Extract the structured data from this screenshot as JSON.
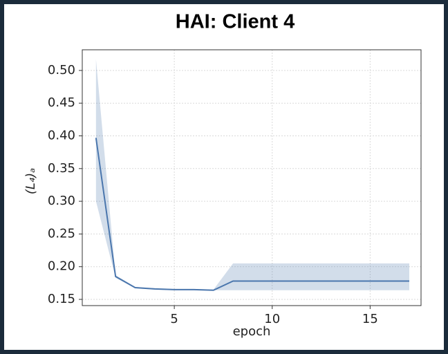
{
  "chart_data": {
    "type": "line",
    "title": "HAI: Client 4",
    "xlabel": "epoch",
    "ylabel": "(L₄)ₐ",
    "x": [
      1,
      2,
      3,
      4,
      5,
      6,
      7,
      8,
      9,
      10,
      11,
      12,
      13,
      14,
      15,
      16,
      17
    ],
    "series": [
      {
        "color": "#4a76ad",
        "values": [
          0.397,
          0.185,
          0.168,
          0.166,
          0.165,
          0.165,
          0.164,
          0.178,
          0.178,
          0.178,
          0.178,
          0.178,
          0.178,
          0.178,
          0.178,
          0.178,
          0.178
        ],
        "lower": [
          0.3,
          0.183,
          0.167,
          0.165,
          0.164,
          0.164,
          0.164,
          0.164,
          0.164,
          0.164,
          0.164,
          0.164,
          0.164,
          0.164,
          0.164,
          0.164,
          0.164
        ],
        "upper": [
          0.517,
          0.187,
          0.169,
          0.167,
          0.166,
          0.166,
          0.165,
          0.205,
          0.205,
          0.205,
          0.205,
          0.205,
          0.205,
          0.205,
          0.205,
          0.205,
          0.205
        ]
      }
    ],
    "xlim": [
      0.3,
      17.6
    ],
    "ylim": [
      0.1405,
      0.5316
    ],
    "xticks": [
      5,
      10,
      15
    ],
    "yticks": [
      0.15,
      {
        "value": 0.2,
        "label": "0.20"
      },
      0.25,
      {
        "value": 0.3,
        "label": "0.30"
      },
      0.35,
      {
        "value": 0.4,
        "label": "0.40"
      },
      0.45,
      {
        "value": 0.5,
        "label": "0.50"
      }
    ],
    "grid": true
  }
}
